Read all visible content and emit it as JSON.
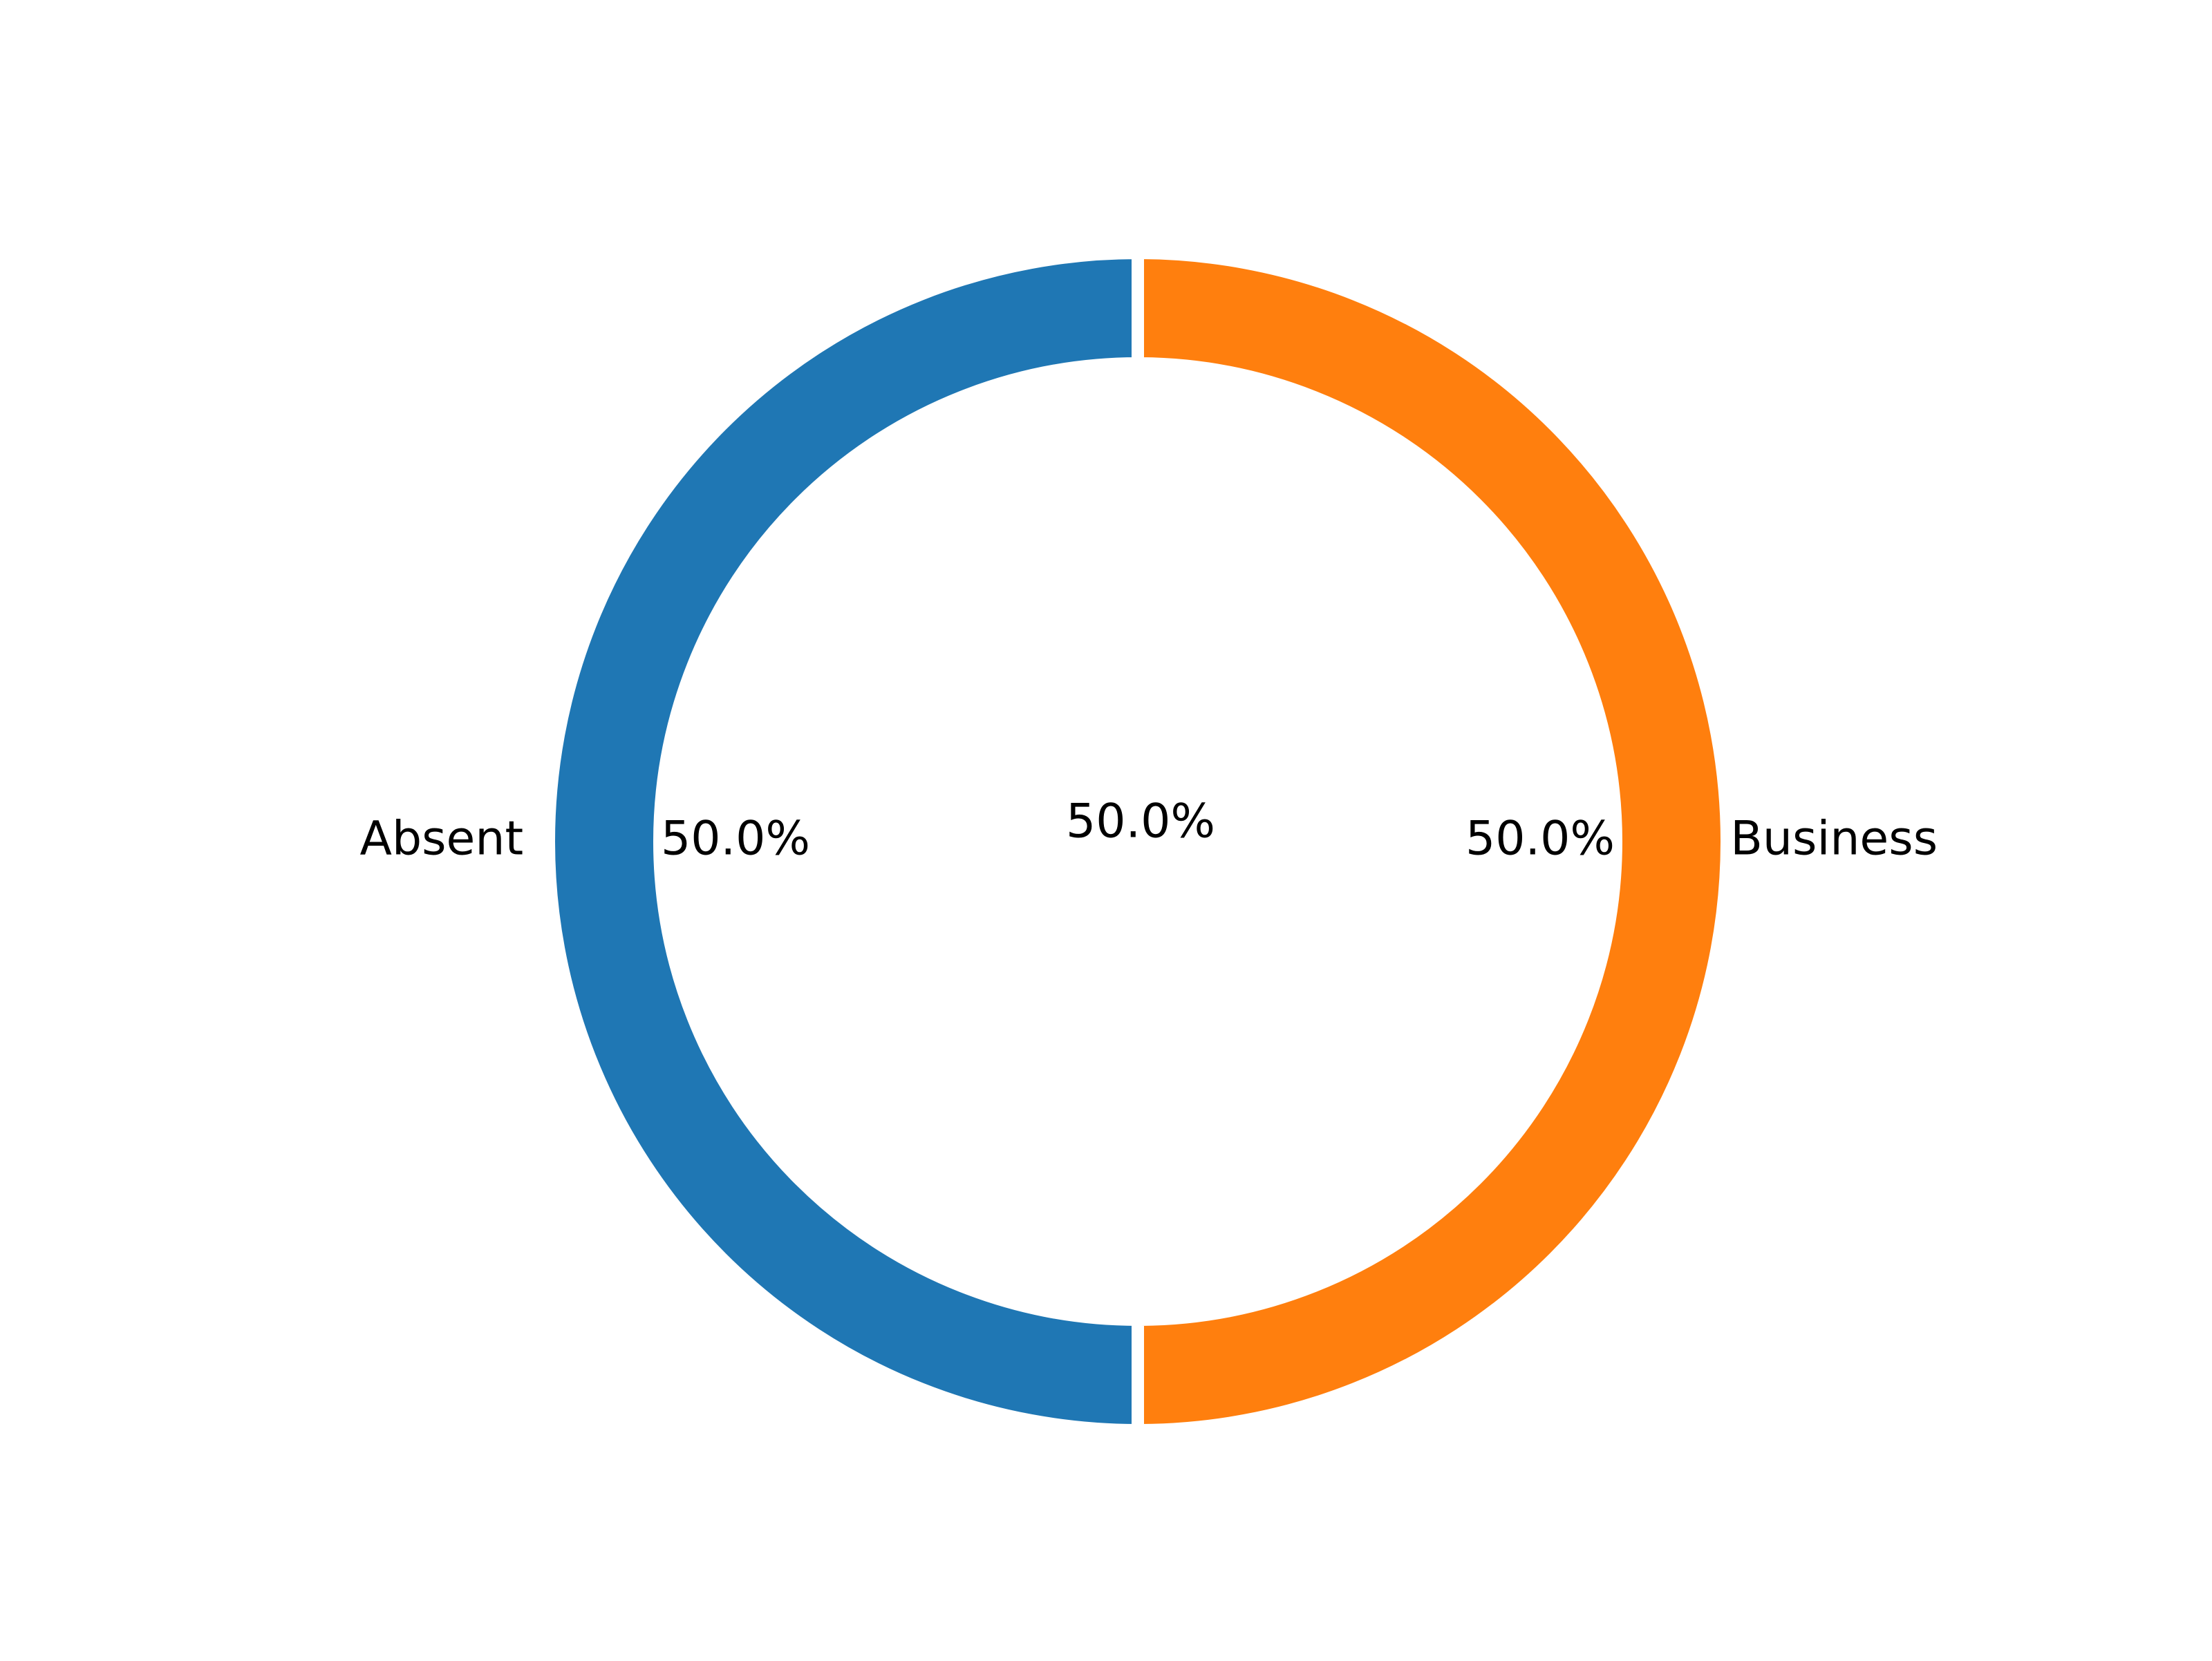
{
  "chart_data": {
    "type": "pie",
    "variant": "donut",
    "slices": [
      {
        "label": "Absent",
        "value": 50.0,
        "pct_label": "50.0%",
        "color": "#1f77b4"
      },
      {
        "label": "Business",
        "value": 50.0,
        "pct_label": "50.0%",
        "color": "#ff7f0e"
      }
    ],
    "center_label": "50.0%",
    "start_angle_deg": 90,
    "direction": "counterclockwise",
    "wedge_edge_color": "#ffffff",
    "legend": "none",
    "grid": false
  }
}
